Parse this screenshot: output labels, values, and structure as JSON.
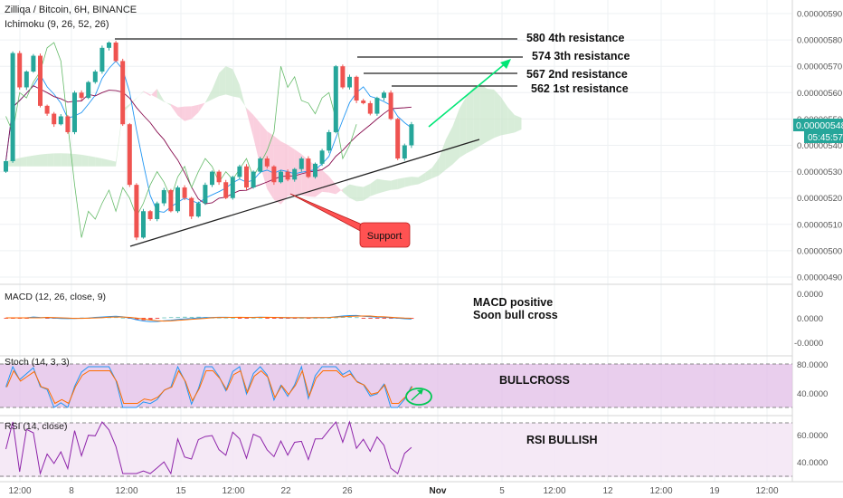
{
  "header": {
    "symbol": "Zilliqa / Bitcoin, 6H, BINANCE",
    "indicator": "Ichimoku (9, 26, 52, 26)"
  },
  "price_axis": {
    "ticks": [
      "0.00000590",
      "0.00000580",
      "0.00000570",
      "0.00000560",
      "0.00000550",
      "0.00000540",
      "0.00000530",
      "0.00000520",
      "0.00000510",
      "0.00000500",
      "0.00000490"
    ],
    "last_price": "0.00000548",
    "countdown": "05:45:57"
  },
  "macd_panel": {
    "label": "MACD (12, 26, close, 9)",
    "ticks": [
      "0.0000",
      "0.0000",
      "-0.0000"
    ],
    "note_line1": "MACD positive",
    "note_line2": "Soon bull cross"
  },
  "stoch_panel": {
    "label": "Stoch (14, 3, 3)",
    "ticks": [
      "80.0000",
      "40.0000"
    ],
    "note": "BULLCROSS"
  },
  "rsi_panel": {
    "label": "RSI (14, close)",
    "ticks": [
      "60.0000",
      "40.0000"
    ],
    "note": "RSI BULLISH"
  },
  "time_axis": [
    "12:00",
    "8",
    "12:00",
    "15",
    "12:00",
    "22",
    "26",
    "Nov",
    "5",
    "12:00",
    "12",
    "12:00",
    "19",
    "12:00"
  ],
  "annotations": {
    "r4": "580 4th resistance",
    "r3": "574 3th resistance",
    "r2": "567 2nd resistance",
    "r1": "562 1st resistance",
    "support": "Support"
  },
  "colors": {
    "up": "#26a69a",
    "down": "#ef5350",
    "kumo_bull": "#c8e6c9",
    "kumo_bear": "#f8bbd0",
    "macd": "#2196f3",
    "signal": "#ff6d00",
    "stoch_k": "#2196f3",
    "stoch_d": "#ff6d00",
    "rsi": "#8e24aa",
    "band": "#e1bee7",
    "forecast_arrow": "#00e676",
    "last_price_tag": "#26a69a"
  },
  "chart_data": {
    "type": "candlestick",
    "price_range": [
      4.88e-06,
      5.93e-06
    ],
    "closes": [
      5.34e-06,
      5.75e-06,
      5.62e-06,
      5.68e-06,
      5.74e-06,
      5.55e-06,
      5.52e-06,
      5.48e-06,
      5.51e-06,
      5.45e-06,
      5.6e-06,
      5.58e-06,
      5.64e-06,
      5.68e-06,
      5.77e-06,
      5.79e-06,
      5.72e-06,
      5.48e-06,
      5.25e-06,
      5.05e-06,
      5.15e-06,
      5.12e-06,
      5.18e-06,
      5.23e-06,
      5.15e-06,
      5.24e-06,
      5.2e-06,
      5.13e-06,
      5.18e-06,
      5.25e-06,
      5.3e-06,
      5.26e-06,
      5.2e-06,
      5.28e-06,
      5.32e-06,
      5.24e-06,
      5.3e-06,
      5.35e-06,
      5.32e-06,
      5.26e-06,
      5.3e-06,
      5.27e-06,
      5.31e-06,
      5.35e-06,
      5.28e-06,
      5.33e-06,
      5.38e-06,
      5.45e-06,
      5.7e-06,
      5.62e-06,
      5.66e-06,
      5.57e-06,
      5.56e-06,
      5.52e-06,
      5.58e-06,
      5.6e-06,
      5.5e-06,
      5.35e-06,
      5.4e-06,
      5.48e-06
    ],
    "resistance_levels": [
      5.8e-06,
      5.74e-06,
      5.67e-06,
      5.62e-06
    ],
    "support_line": [
      {
        "x": "Oct 8 12:00",
        "y": 5.01e-06
      },
      {
        "x": "Oct 28",
        "y": 5.37e-06
      }
    ],
    "macd": [
      0.0,
      0.0
    ],
    "stoch_levels": [
      80,
      20
    ],
    "rsi_levels": [
      70,
      30
    ]
  }
}
